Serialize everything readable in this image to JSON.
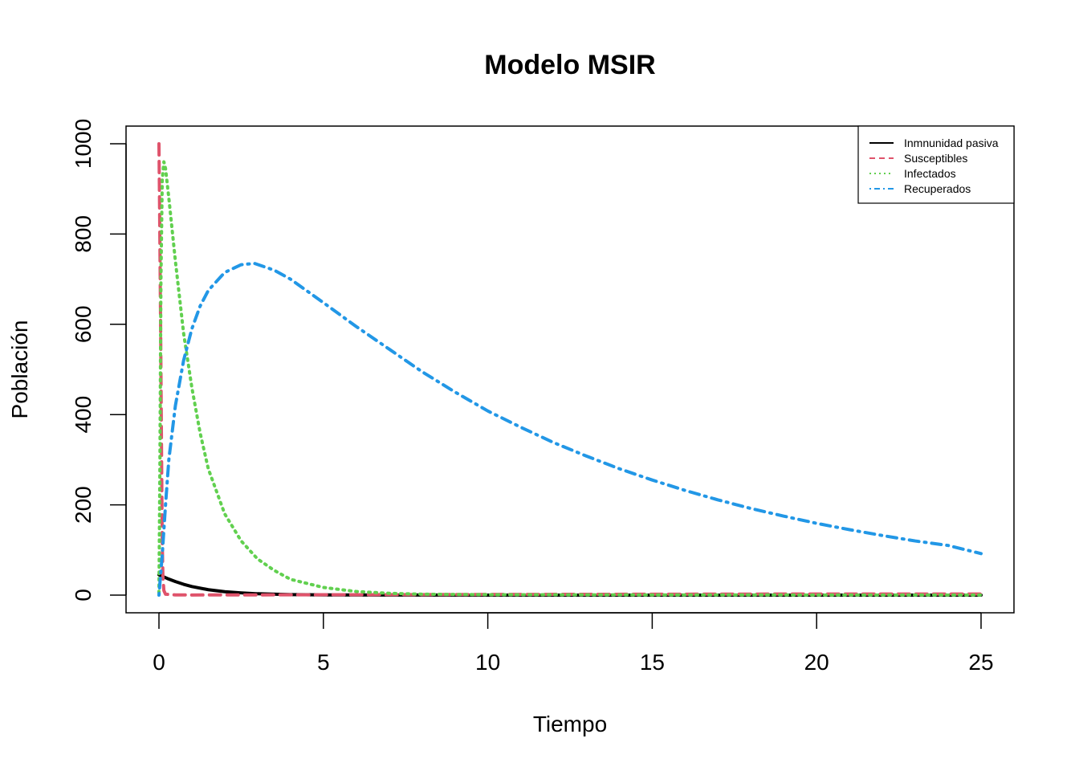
{
  "chart_data": {
    "type": "line",
    "title": "Modelo MSIR",
    "xlabel": "Tiempo",
    "ylabel": "Población",
    "xlim": [
      0,
      25
    ],
    "ylim": [
      0,
      1000
    ],
    "x_ticks": [
      "0",
      "5",
      "10",
      "15",
      "20",
      "25"
    ],
    "y_ticks": [
      "0",
      "200",
      "400",
      "600",
      "800",
      "1000"
    ],
    "grid": false,
    "legend_position": "top-right",
    "series": [
      {
        "name": "Inmnunidad pasiva",
        "color": "#000000",
        "dash": "solid",
        "x": [
          0,
          0.25,
          0.5,
          0.75,
          1,
          1.5,
          2,
          2.5,
          3,
          4,
          5,
          7,
          10,
          15,
          20,
          25
        ],
        "y": [
          45,
          37,
          30,
          24,
          19,
          12,
          7.5,
          5,
          3,
          1.2,
          0.5,
          0.2,
          0,
          0,
          0,
          0
        ]
      },
      {
        "name": "Susceptibles",
        "color": "#DF536B",
        "dash": "dashed",
        "x": [
          0,
          0.02,
          0.05,
          0.08,
          0.1,
          0.12,
          0.15,
          0.2,
          0.5,
          1,
          3,
          5,
          10,
          15,
          20,
          25
        ],
        "y": [
          1000,
          850,
          600,
          300,
          120,
          40,
          10,
          2,
          0.5,
          0.3,
          0.5,
          0.8,
          1.5,
          2,
          2.5,
          2.5
        ]
      },
      {
        "name": "Infectados",
        "color": "#61D04F",
        "dash": "dotted",
        "x": [
          0,
          0.03,
          0.06,
          0.1,
          0.15,
          0.2,
          0.3,
          0.5,
          0.75,
          1,
          1.25,
          1.5,
          2,
          2.5,
          3,
          3.5,
          4,
          5,
          6,
          7,
          8,
          10,
          15,
          20,
          25
        ],
        "y": [
          5,
          300,
          700,
          920,
          960,
          945,
          880,
          740,
          580,
          460,
          360,
          280,
          180,
          120,
          80,
          55,
          35,
          17,
          8,
          4,
          2,
          1,
          0.5,
          0.3,
          0.3
        ]
      },
      {
        "name": "Recuperados",
        "color": "#2297E6",
        "dash": "dotdash",
        "x": [
          0,
          0.1,
          0.2,
          0.3,
          0.5,
          0.75,
          1,
          1.25,
          1.5,
          2,
          2.5,
          2.9,
          3.5,
          4,
          5,
          6,
          7,
          8,
          9,
          10,
          11,
          12,
          13,
          14,
          15,
          16,
          17,
          18,
          19,
          20,
          21,
          22,
          23,
          24,
          25
        ],
        "y": [
          0,
          90,
          200,
          300,
          420,
          520,
          590,
          640,
          675,
          715,
          732,
          735,
          720,
          700,
          648,
          595,
          545,
          495,
          450,
          408,
          372,
          338,
          308,
          280,
          255,
          232,
          211,
          192,
          175,
          159,
          145,
          132,
          120,
          110,
          92
        ]
      }
    ]
  }
}
